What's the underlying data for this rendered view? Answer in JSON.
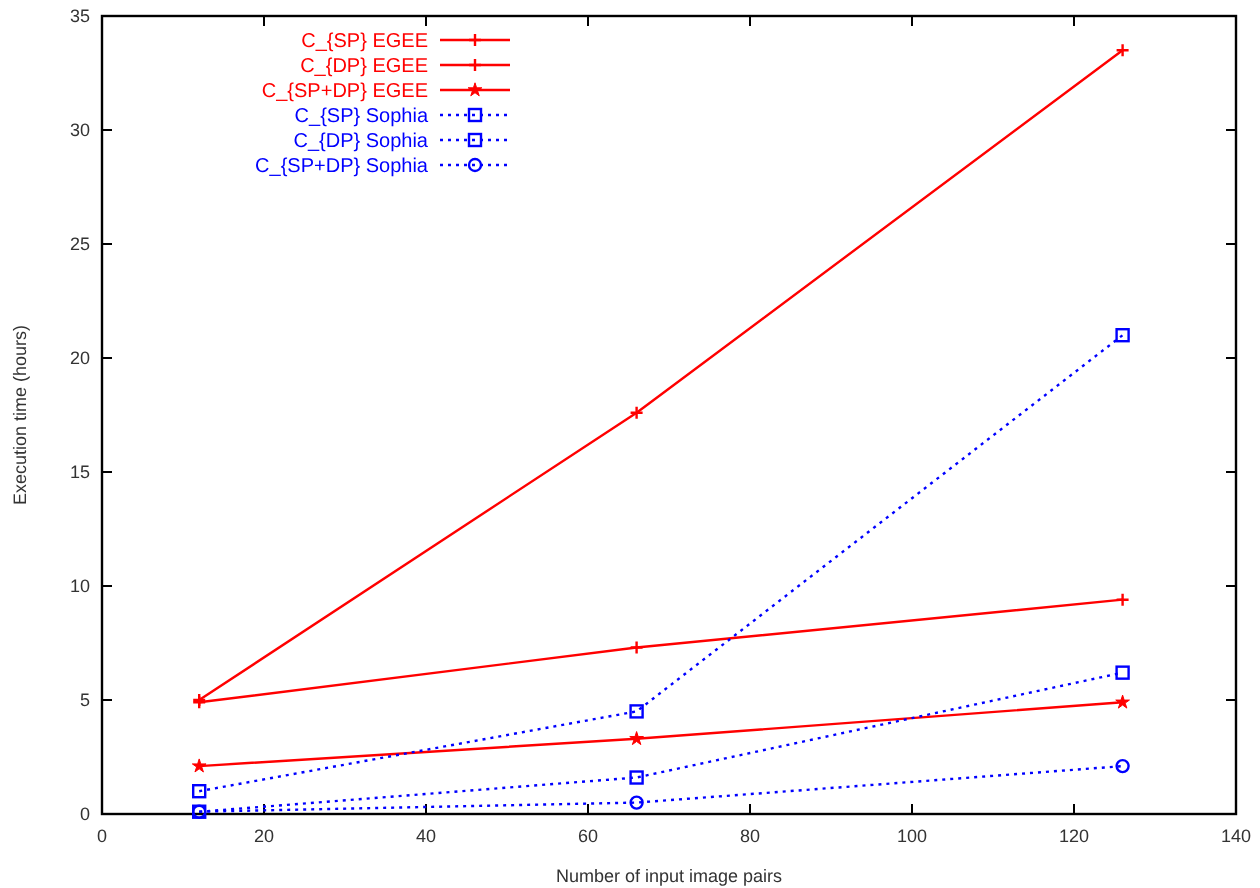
{
  "chart_data": {
    "type": "line",
    "xlabel": "Number of input image pairs",
    "ylabel": "Execution time (hours)",
    "xlim": [
      0,
      140
    ],
    "xticks": [
      0,
      20,
      40,
      60,
      80,
      100,
      120,
      140
    ],
    "ylim": [
      0,
      35
    ],
    "yticks": [
      0,
      5,
      10,
      15,
      20,
      25,
      30,
      35
    ],
    "x": [
      12,
      66,
      126
    ],
    "grid": false,
    "legend": "top left",
    "series": [
      {
        "name": "C_{SP} EGEE",
        "color": "#ff0000",
        "values": [
          5.0,
          17.6,
          33.5
        ],
        "marker": "cross",
        "line_style": "solid"
      },
      {
        "name": "C_{DP} EGEE",
        "color": "#ff0000",
        "values": [
          4.9,
          7.3,
          9.4
        ],
        "marker": "cross",
        "line_style": "solid"
      },
      {
        "name": "C_{SP+DP} EGEE",
        "color": "#ff0000",
        "values": [
          2.1,
          3.3,
          4.9
        ],
        "marker": "star",
        "line_style": "solid"
      },
      {
        "name": "C_{SP} Sophia",
        "color": "#0000ff",
        "values": [
          1.0,
          4.5,
          21.0
        ],
        "marker": "square",
        "line_style": "dotted"
      },
      {
        "name": "C_{DP} Sophia",
        "color": "#0000ff",
        "values": [
          0.1,
          1.6,
          6.2
        ],
        "marker": "square",
        "line_style": "dotted"
      },
      {
        "name": "C_{SP+DP} Sophia",
        "color": "#0000ff",
        "values": [
          0.1,
          0.5,
          2.1
        ],
        "marker": "circle",
        "line_style": "dotted"
      }
    ]
  }
}
